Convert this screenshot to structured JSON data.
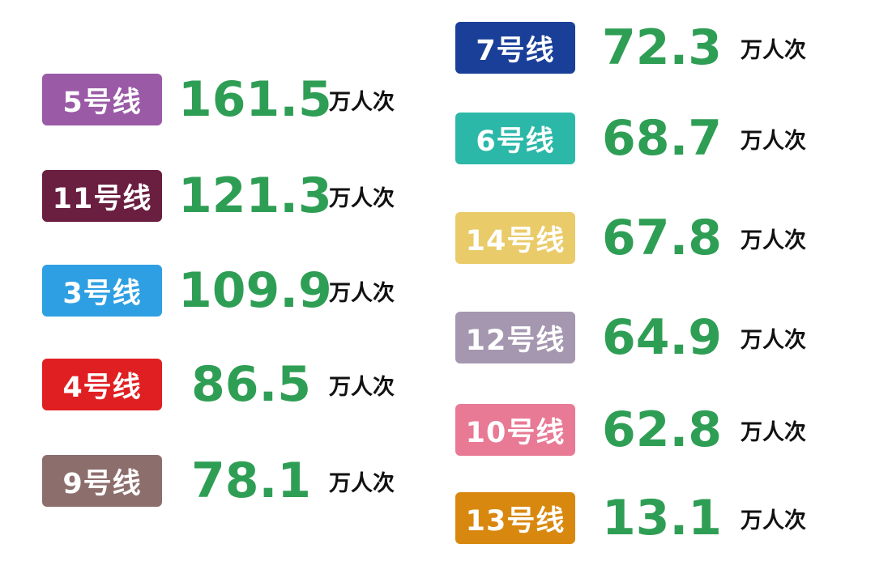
{
  "unit": "万人次",
  "left": [
    {
      "line": "5号线",
      "value": "161.5",
      "color": "#9a5aa6"
    },
    {
      "line": "11号线",
      "value": "121.3",
      "color": "#6a1e40"
    },
    {
      "line": "3号线",
      "value": "109.9",
      "color": "#2e9fe2"
    },
    {
      "line": "4号线",
      "value": "86.5",
      "color": "#e01f22"
    },
    {
      "line": "9号线",
      "value": "78.1",
      "color": "#8c6e6c"
    }
  ],
  "right": [
    {
      "line": "7号线",
      "value": "72.3",
      "color": "#1a3f98"
    },
    {
      "line": "6号线",
      "value": "68.7",
      "color": "#2cb8a8"
    },
    {
      "line": "14号线",
      "value": "67.8",
      "color": "#eacb6a"
    },
    {
      "line": "12号线",
      "value": "64.9",
      "color": "#a597b0"
    },
    {
      "line": "10号线",
      "value": "62.8",
      "color": "#e87a95"
    },
    {
      "line": "13号线",
      "value": "13.1",
      "color": "#d9880f"
    }
  ],
  "value_color": "#2f9e55"
}
